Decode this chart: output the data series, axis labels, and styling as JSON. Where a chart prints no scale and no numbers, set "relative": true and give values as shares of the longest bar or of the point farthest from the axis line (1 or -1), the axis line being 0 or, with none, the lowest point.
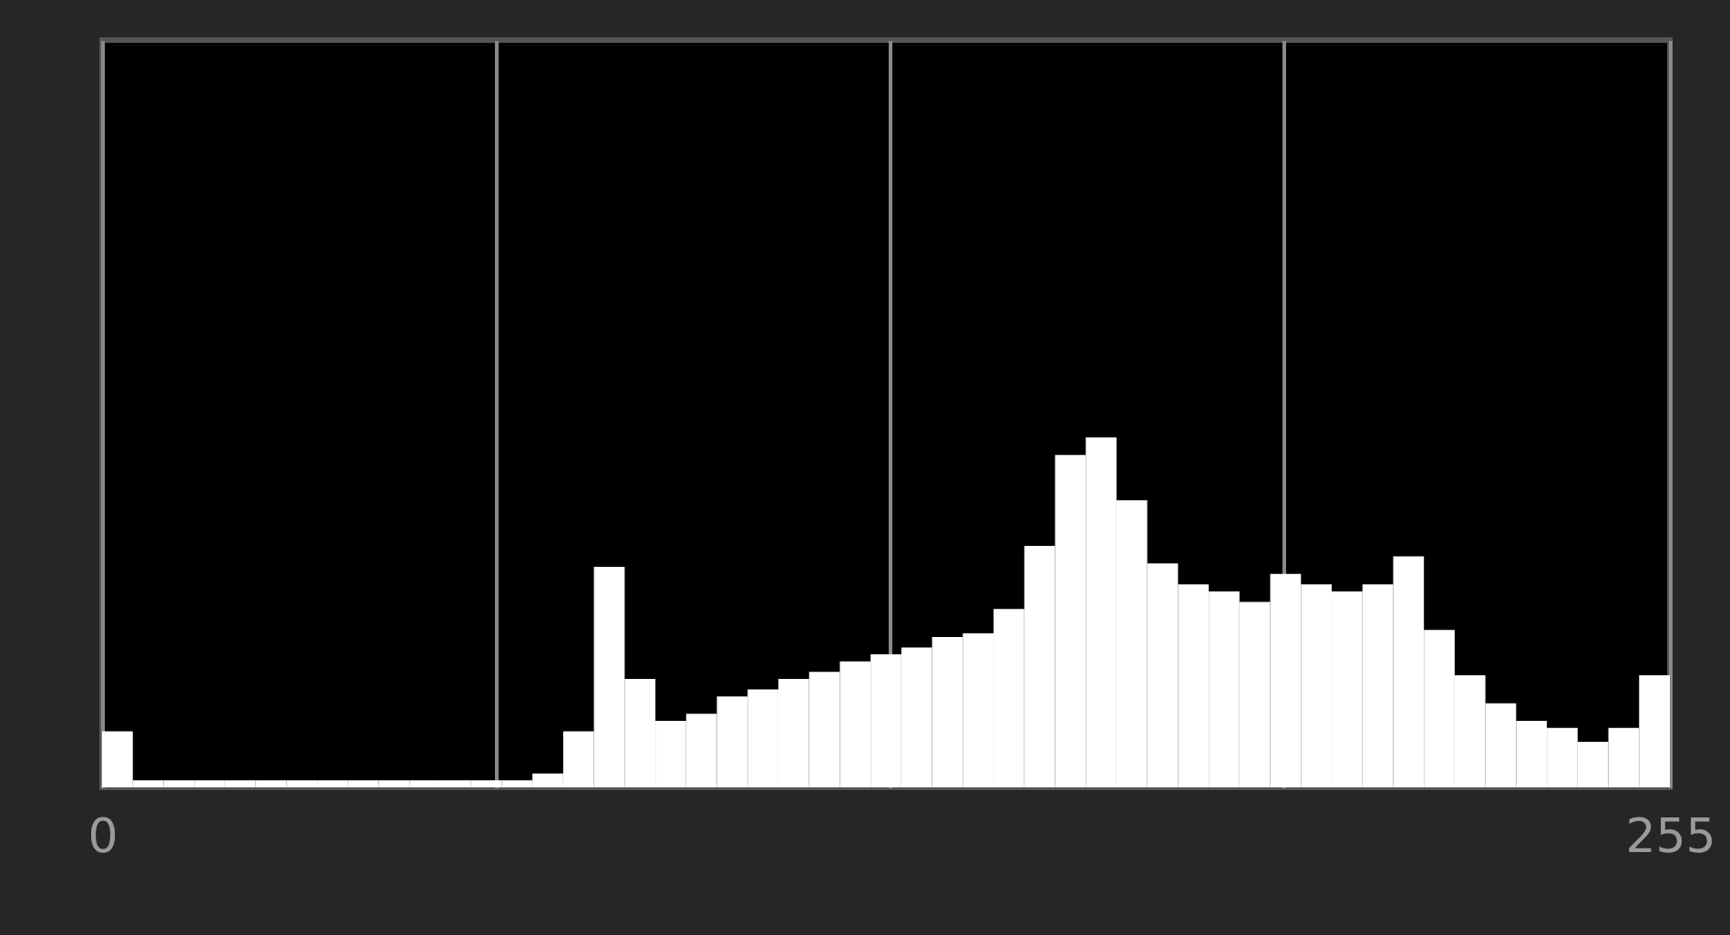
{
  "chart_data": {
    "type": "bar",
    "relative": true,
    "color": "#ffffff",
    "x": [
      2.5,
      7.5,
      12.5,
      17.5,
      22.5,
      27.5,
      32.5,
      37.5,
      42.5,
      47.5,
      52.5,
      57.5,
      62.5,
      67.5,
      72.5,
      77.5,
      82.5,
      87.5,
      92.5,
      97.5,
      102.5,
      107.5,
      112.5,
      117.5,
      122.5,
      127.5,
      132.5,
      137.5,
      142.5,
      147.5,
      152.5,
      157.5,
      162.5,
      167.5,
      172.5,
      177.5,
      182.5,
      187.5,
      192.5,
      197.5,
      202.5,
      207.5,
      212.5,
      217.5,
      222.5,
      227.5,
      232.5,
      237.5,
      242.5,
      247.5,
      252.5
    ],
    "values": [
      0.16,
      0.02,
      0.02,
      0.02,
      0.02,
      0.02,
      0.02,
      0.02,
      0.02,
      0.02,
      0.02,
      0.02,
      0.02,
      0.02,
      0.04,
      0.16,
      0.63,
      0.31,
      0.19,
      0.21,
      0.26,
      0.28,
      0.31,
      0.33,
      0.36,
      0.38,
      0.4,
      0.43,
      0.44,
      0.51,
      0.69,
      0.95,
      1,
      0.82,
      0.64,
      0.58,
      0.56,
      0.53,
      0.61,
      0.58,
      0.56,
      0.58,
      0.66,
      0.45,
      0.32,
      0.24,
      0.19,
      0.17,
      0.13,
      0.17,
      0.32
    ],
    "xlim": [
      0,
      255
    ],
    "xticks": [
      0,
      {
        "value": 64,
        "label": null
      },
      {
        "value": 128,
        "label": null
      },
      {
        "value": 192,
        "label": null
      },
      255
    ],
    "grid": "x"
  }
}
